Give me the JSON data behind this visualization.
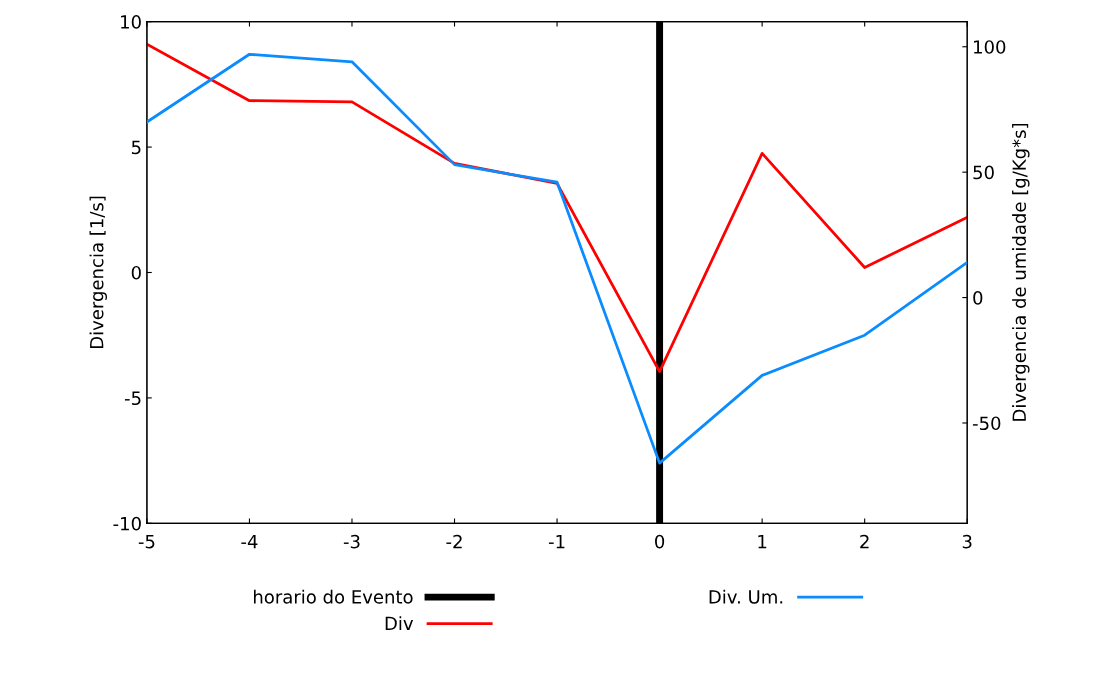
{
  "chart_data": {
    "type": "line",
    "xlabel": null,
    "ylabel": "Divergencia [1/s]",
    "y2label": "Divergencia de umidade [g/Kg*s]",
    "x": [
      -5,
      -4,
      -3,
      -2,
      -1,
      0,
      1,
      2,
      3
    ],
    "series": [
      {
        "name": "Div",
        "color": "#ff0000",
        "values": [
          9.1,
          6.85,
          6.8,
          4.35,
          3.55,
          -3.95,
          4.75,
          0.2,
          2.2
        ]
      },
      {
        "name": "Div. Um.",
        "color": "#0a8cff",
        "axis": "y2",
        "values": [
          70,
          97,
          94,
          53,
          46,
          -66,
          -31,
          -15,
          14
        ]
      }
    ],
    "xlim": [
      -5,
      3
    ],
    "xticks": [
      -5,
      -4,
      -3,
      -2,
      -1,
      0,
      1,
      2,
      3
    ],
    "ylim": [
      -10,
      10
    ],
    "yticks": [
      -10,
      -5,
      0,
      5,
      10
    ],
    "y2lim": [
      -90,
      110
    ],
    "y2ticks": [
      -50,
      0,
      50,
      100
    ],
    "ref_lines": [
      {
        "axis": "x",
        "value": 0,
        "label": "horario do Evento",
        "color": "#000000"
      }
    ],
    "grid": false,
    "legend": "bottom",
    "marker": "none",
    "line_style": "solid"
  }
}
